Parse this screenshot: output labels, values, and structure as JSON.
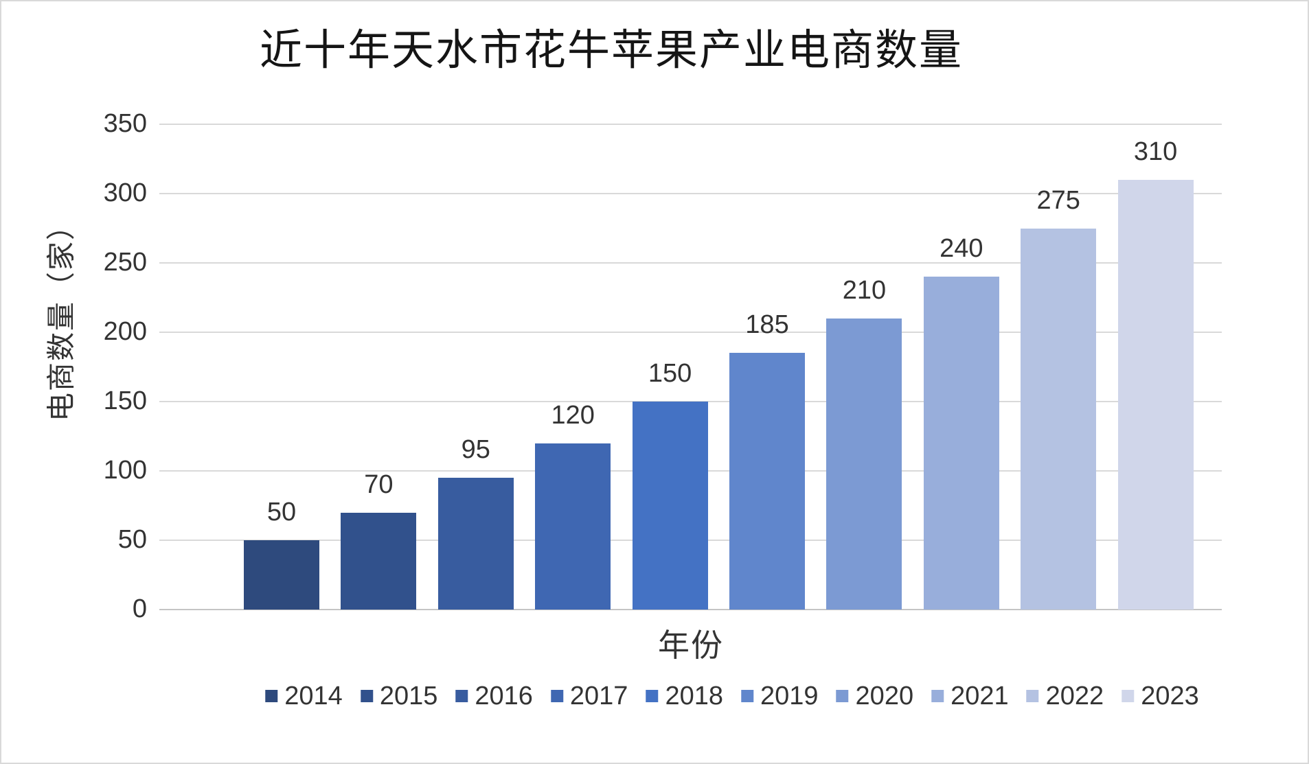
{
  "chart_data": {
    "type": "bar",
    "title": "近十年天水市花牛苹果产业电商数量",
    "xlabel": "年份",
    "ylabel": "电商数量（家）",
    "categories": [
      "2014",
      "2015",
      "2016",
      "2017",
      "2018",
      "2019",
      "2020",
      "2021",
      "2022",
      "2023"
    ],
    "values": [
      50,
      70,
      95,
      120,
      150,
      185,
      210,
      240,
      275,
      310
    ],
    "bar_colors": [
      "#2E4A7D",
      "#31518C",
      "#385C9F",
      "#3F67B2",
      "#4472C4",
      "#6086CC",
      "#7C9AD3",
      "#98AEDB",
      "#B4C2E2",
      "#D0D6EA"
    ],
    "yticks": [
      0,
      50,
      100,
      150,
      200,
      250,
      300,
      350
    ],
    "ylim": [
      0,
      350
    ],
    "grid": true,
    "legend_position": "bottom",
    "value_labels_shown": true
  },
  "palette": {
    "gridline": "#D9D9D9",
    "axis_line": "#C4C4C4",
    "text": "#333333",
    "title_text": "#151515",
    "background": "#FFFFFF",
    "frame_border": "#D9D9D9"
  }
}
